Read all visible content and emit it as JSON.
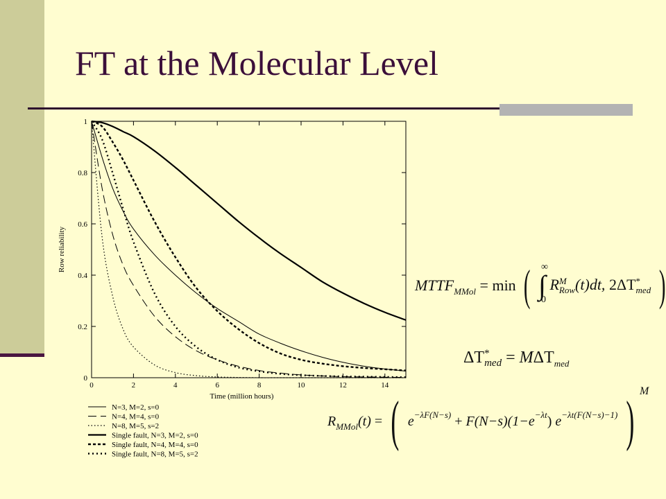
{
  "slide": {
    "title": "FT at the Molecular Level"
  },
  "colors": {
    "background": "#fffdd0",
    "left_bar": "#cccc99",
    "title": "#3b0f3a",
    "rule": "#2d0e2d",
    "rule_accent": "#b3b3b3"
  },
  "equations": {
    "mttf": {
      "lhs": "MTTF",
      "lhs_sub": "MMol",
      "eq": "=",
      "fn": "min",
      "int_upper": "∞",
      "int_lower": "0",
      "r": "R",
      "r_sup": "M",
      "r_sub": "Row",
      "arg": "(t)",
      "dt": "dt,",
      "two": "2",
      "delta_t": "ΔT",
      "star": "*",
      "med": "med"
    },
    "delta": {
      "lhs": "ΔT",
      "lhs_sup": "*",
      "lhs_sub": "med",
      "eq": "=",
      "m": "M",
      "rhs": "ΔT",
      "rhs_sub": "med"
    },
    "reliability": {
      "lhs": "R",
      "lhs_sub": "MMol",
      "arg": "(t)",
      "eq": "=",
      "e": "e",
      "exp1": "−λF(N−s)",
      "plus": "+",
      "term2": "F(N−s)(1−e",
      "exp2": "−λt",
      "close2": ")",
      "e2": "e",
      "exp3": "−λt(F(N−s)−1)",
      "outer_sup": "M"
    }
  },
  "chart_data": {
    "type": "line",
    "title": "",
    "xlabel": "Time (million hours)",
    "ylabel": "Row reliability",
    "xlim": [
      0,
      15
    ],
    "ylim": [
      0,
      1
    ],
    "xticks": [
      0,
      2,
      4,
      6,
      8,
      10,
      12,
      14
    ],
    "yticks": [
      0,
      0.2,
      0.4,
      0.6,
      0.8,
      1
    ],
    "x": [
      0,
      0.5,
      1,
      1.5,
      2,
      3,
      4,
      5,
      6,
      7,
      8,
      9,
      10,
      11,
      12,
      13,
      14,
      15
    ],
    "series": [
      {
        "name": "N=3, M=2, s=0",
        "style": "thin-solid",
        "values": [
          1,
          0.86,
          0.74,
          0.65,
          0.58,
          0.48,
          0.4,
          0.33,
          0.27,
          0.22,
          0.17,
          0.135,
          0.105,
          0.08,
          0.06,
          0.045,
          0.034,
          0.026
        ]
      },
      {
        "name": "N=4, M=4, s=0",
        "style": "thin-dashed",
        "values": [
          1,
          0.74,
          0.56,
          0.44,
          0.36,
          0.24,
          0.16,
          0.105,
          0.07,
          0.045,
          0.028,
          0.018,
          0.011,
          0.007,
          0.004,
          0.003,
          0.002,
          0.001
        ]
      },
      {
        "name": "N=8, M=5, s=2",
        "style": "thin-dotted",
        "values": [
          1,
          0.55,
          0.32,
          0.19,
          0.12,
          0.05,
          0.02,
          0.008,
          0.003,
          0.001,
          0,
          0,
          0,
          0,
          0,
          0,
          0,
          0
        ]
      },
      {
        "name": "Single fault, N=3, M=2, s=0",
        "style": "thick-solid",
        "values": [
          1,
          0.995,
          0.98,
          0.96,
          0.94,
          0.885,
          0.82,
          0.75,
          0.68,
          0.61,
          0.545,
          0.485,
          0.43,
          0.375,
          0.33,
          0.29,
          0.255,
          0.225
        ]
      },
      {
        "name": "Single fault, N=4, M=4, s=0",
        "style": "thick-dashed",
        "values": [
          1,
          0.98,
          0.92,
          0.85,
          0.77,
          0.61,
          0.47,
          0.35,
          0.26,
          0.19,
          0.135,
          0.095,
          0.07,
          0.055,
          0.045,
          0.038,
          0.033,
          0.028
        ]
      },
      {
        "name": "Single fault, N=8, M=5, s=2",
        "style": "thick-dotted",
        "values": [
          1,
          0.93,
          0.8,
          0.66,
          0.53,
          0.33,
          0.2,
          0.12,
          0.07,
          0.04,
          0.025,
          0.015,
          0.01,
          0.007,
          0.005,
          0.004,
          0.003,
          0.002
        ]
      }
    ],
    "legend_position": "below"
  }
}
